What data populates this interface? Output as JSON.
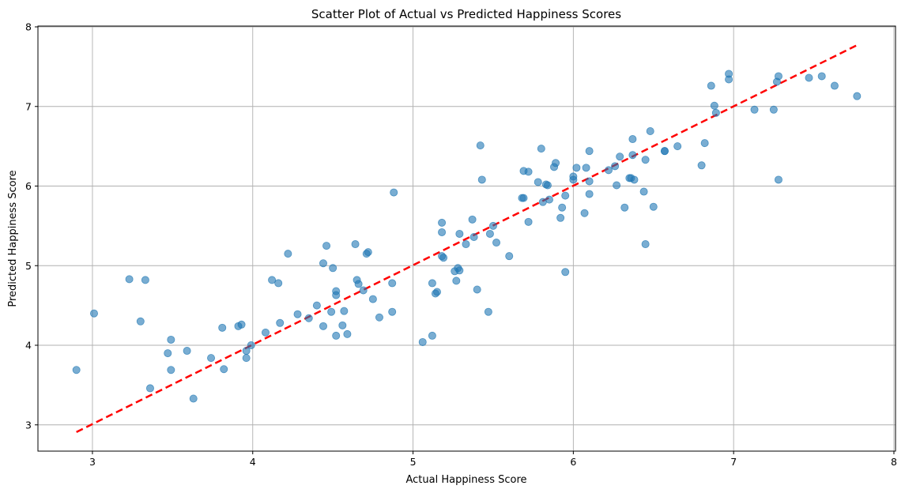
{
  "chart_data": {
    "type": "scatter",
    "title": "Scatter Plot of Actual vs Predicted Happiness Scores",
    "xlabel": "Actual Happiness Score",
    "ylabel": "Predicted Happiness Score",
    "xlim": [
      2.66,
      8.01
    ],
    "ylim": [
      2.67,
      8.01
    ],
    "xticks": [
      3,
      4,
      5,
      6,
      7,
      8
    ],
    "yticks": [
      3,
      4,
      5,
      6,
      7,
      8
    ],
    "grid": true,
    "point_color": "#1f77b4",
    "reference_line": {
      "from": [
        2.9,
        2.91
      ],
      "to": [
        7.77,
        7.77
      ],
      "color": "#ff0000",
      "style": "dashed"
    },
    "points": [
      [
        2.9,
        3.69
      ],
      [
        3.01,
        4.4
      ],
      [
        3.23,
        4.83
      ],
      [
        3.3,
        4.3
      ],
      [
        3.33,
        4.82
      ],
      [
        3.36,
        3.46
      ],
      [
        3.47,
        3.9
      ],
      [
        3.49,
        4.07
      ],
      [
        3.49,
        3.69
      ],
      [
        3.59,
        3.93
      ],
      [
        3.63,
        3.33
      ],
      [
        3.74,
        3.84
      ],
      [
        3.81,
        4.22
      ],
      [
        3.82,
        3.7
      ],
      [
        3.91,
        4.24
      ],
      [
        3.93,
        4.26
      ],
      [
        3.96,
        3.93
      ],
      [
        3.96,
        3.84
      ],
      [
        3.99,
        4.0
      ],
      [
        4.08,
        4.16
      ],
      [
        4.12,
        4.82
      ],
      [
        4.16,
        4.78
      ],
      [
        4.17,
        4.28
      ],
      [
        4.22,
        5.15
      ],
      [
        4.28,
        4.39
      ],
      [
        4.35,
        4.34
      ],
      [
        4.4,
        4.5
      ],
      [
        4.44,
        5.03
      ],
      [
        4.44,
        4.24
      ],
      [
        4.46,
        5.25
      ],
      [
        4.49,
        4.42
      ],
      [
        4.5,
        4.97
      ],
      [
        4.52,
        4.68
      ],
      [
        4.52,
        4.63
      ],
      [
        4.52,
        4.12
      ],
      [
        4.56,
        4.25
      ],
      [
        4.57,
        4.43
      ],
      [
        4.59,
        4.14
      ],
      [
        4.64,
        5.27
      ],
      [
        4.65,
        4.82
      ],
      [
        4.66,
        4.77
      ],
      [
        4.69,
        4.69
      ],
      [
        4.71,
        5.15
      ],
      [
        4.72,
        5.17
      ],
      [
        4.75,
        4.58
      ],
      [
        4.79,
        4.35
      ],
      [
        4.87,
        4.78
      ],
      [
        4.87,
        4.42
      ],
      [
        4.88,
        5.92
      ],
      [
        5.06,
        4.04
      ],
      [
        5.12,
        4.78
      ],
      [
        5.12,
        4.12
      ],
      [
        5.14,
        4.65
      ],
      [
        5.15,
        4.67
      ],
      [
        5.18,
        5.54
      ],
      [
        5.18,
        5.42
      ],
      [
        5.18,
        5.12
      ],
      [
        5.19,
        5.1
      ],
      [
        5.26,
        4.93
      ],
      [
        5.27,
        4.81
      ],
      [
        5.28,
        4.97
      ],
      [
        5.29,
        5.4
      ],
      [
        5.29,
        4.94
      ],
      [
        5.33,
        5.27
      ],
      [
        5.37,
        5.58
      ],
      [
        5.38,
        5.36
      ],
      [
        5.4,
        4.7
      ],
      [
        5.42,
        6.51
      ],
      [
        5.43,
        6.08
      ],
      [
        5.47,
        4.42
      ],
      [
        5.48,
        5.4
      ],
      [
        5.5,
        5.5
      ],
      [
        5.52,
        5.29
      ],
      [
        5.6,
        5.12
      ],
      [
        5.68,
        5.85
      ],
      [
        5.69,
        5.85
      ],
      [
        5.69,
        6.19
      ],
      [
        5.72,
        6.18
      ],
      [
        5.72,
        5.55
      ],
      [
        5.78,
        6.05
      ],
      [
        5.8,
        6.47
      ],
      [
        5.81,
        5.8
      ],
      [
        5.83,
        6.02
      ],
      [
        5.84,
        6.01
      ],
      [
        5.85,
        5.83
      ],
      [
        5.88,
        6.24
      ],
      [
        5.89,
        6.29
      ],
      [
        5.92,
        5.6
      ],
      [
        5.93,
        5.73
      ],
      [
        5.95,
        5.88
      ],
      [
        5.95,
        4.92
      ],
      [
        6.0,
        6.12
      ],
      [
        6.0,
        6.08
      ],
      [
        6.02,
        6.23
      ],
      [
        6.07,
        5.66
      ],
      [
        6.08,
        6.23
      ],
      [
        6.1,
        6.44
      ],
      [
        6.1,
        6.06
      ],
      [
        6.1,
        5.9
      ],
      [
        6.22,
        6.2
      ],
      [
        6.26,
        6.25
      ],
      [
        6.27,
        6.01
      ],
      [
        6.29,
        6.37
      ],
      [
        6.32,
        5.73
      ],
      [
        6.35,
        6.1
      ],
      [
        6.36,
        6.1
      ],
      [
        6.37,
        6.59
      ],
      [
        6.37,
        6.39
      ],
      [
        6.38,
        6.08
      ],
      [
        6.44,
        5.93
      ],
      [
        6.45,
        6.33
      ],
      [
        6.45,
        5.27
      ],
      [
        6.48,
        6.69
      ],
      [
        6.5,
        5.74
      ],
      [
        6.57,
        6.44
      ],
      [
        6.57,
        6.44
      ],
      [
        6.65,
        6.5
      ],
      [
        6.8,
        6.26
      ],
      [
        6.82,
        6.54
      ],
      [
        6.86,
        7.26
      ],
      [
        6.88,
        7.01
      ],
      [
        6.89,
        6.92
      ],
      [
        6.97,
        7.41
      ],
      [
        6.97,
        7.34
      ],
      [
        7.13,
        6.96
      ],
      [
        7.25,
        6.96
      ],
      [
        7.27,
        7.31
      ],
      [
        7.28,
        7.38
      ],
      [
        7.28,
        6.08
      ],
      [
        7.47,
        7.36
      ],
      [
        7.55,
        7.38
      ],
      [
        7.63,
        7.26
      ],
      [
        7.77,
        7.13
      ]
    ]
  }
}
